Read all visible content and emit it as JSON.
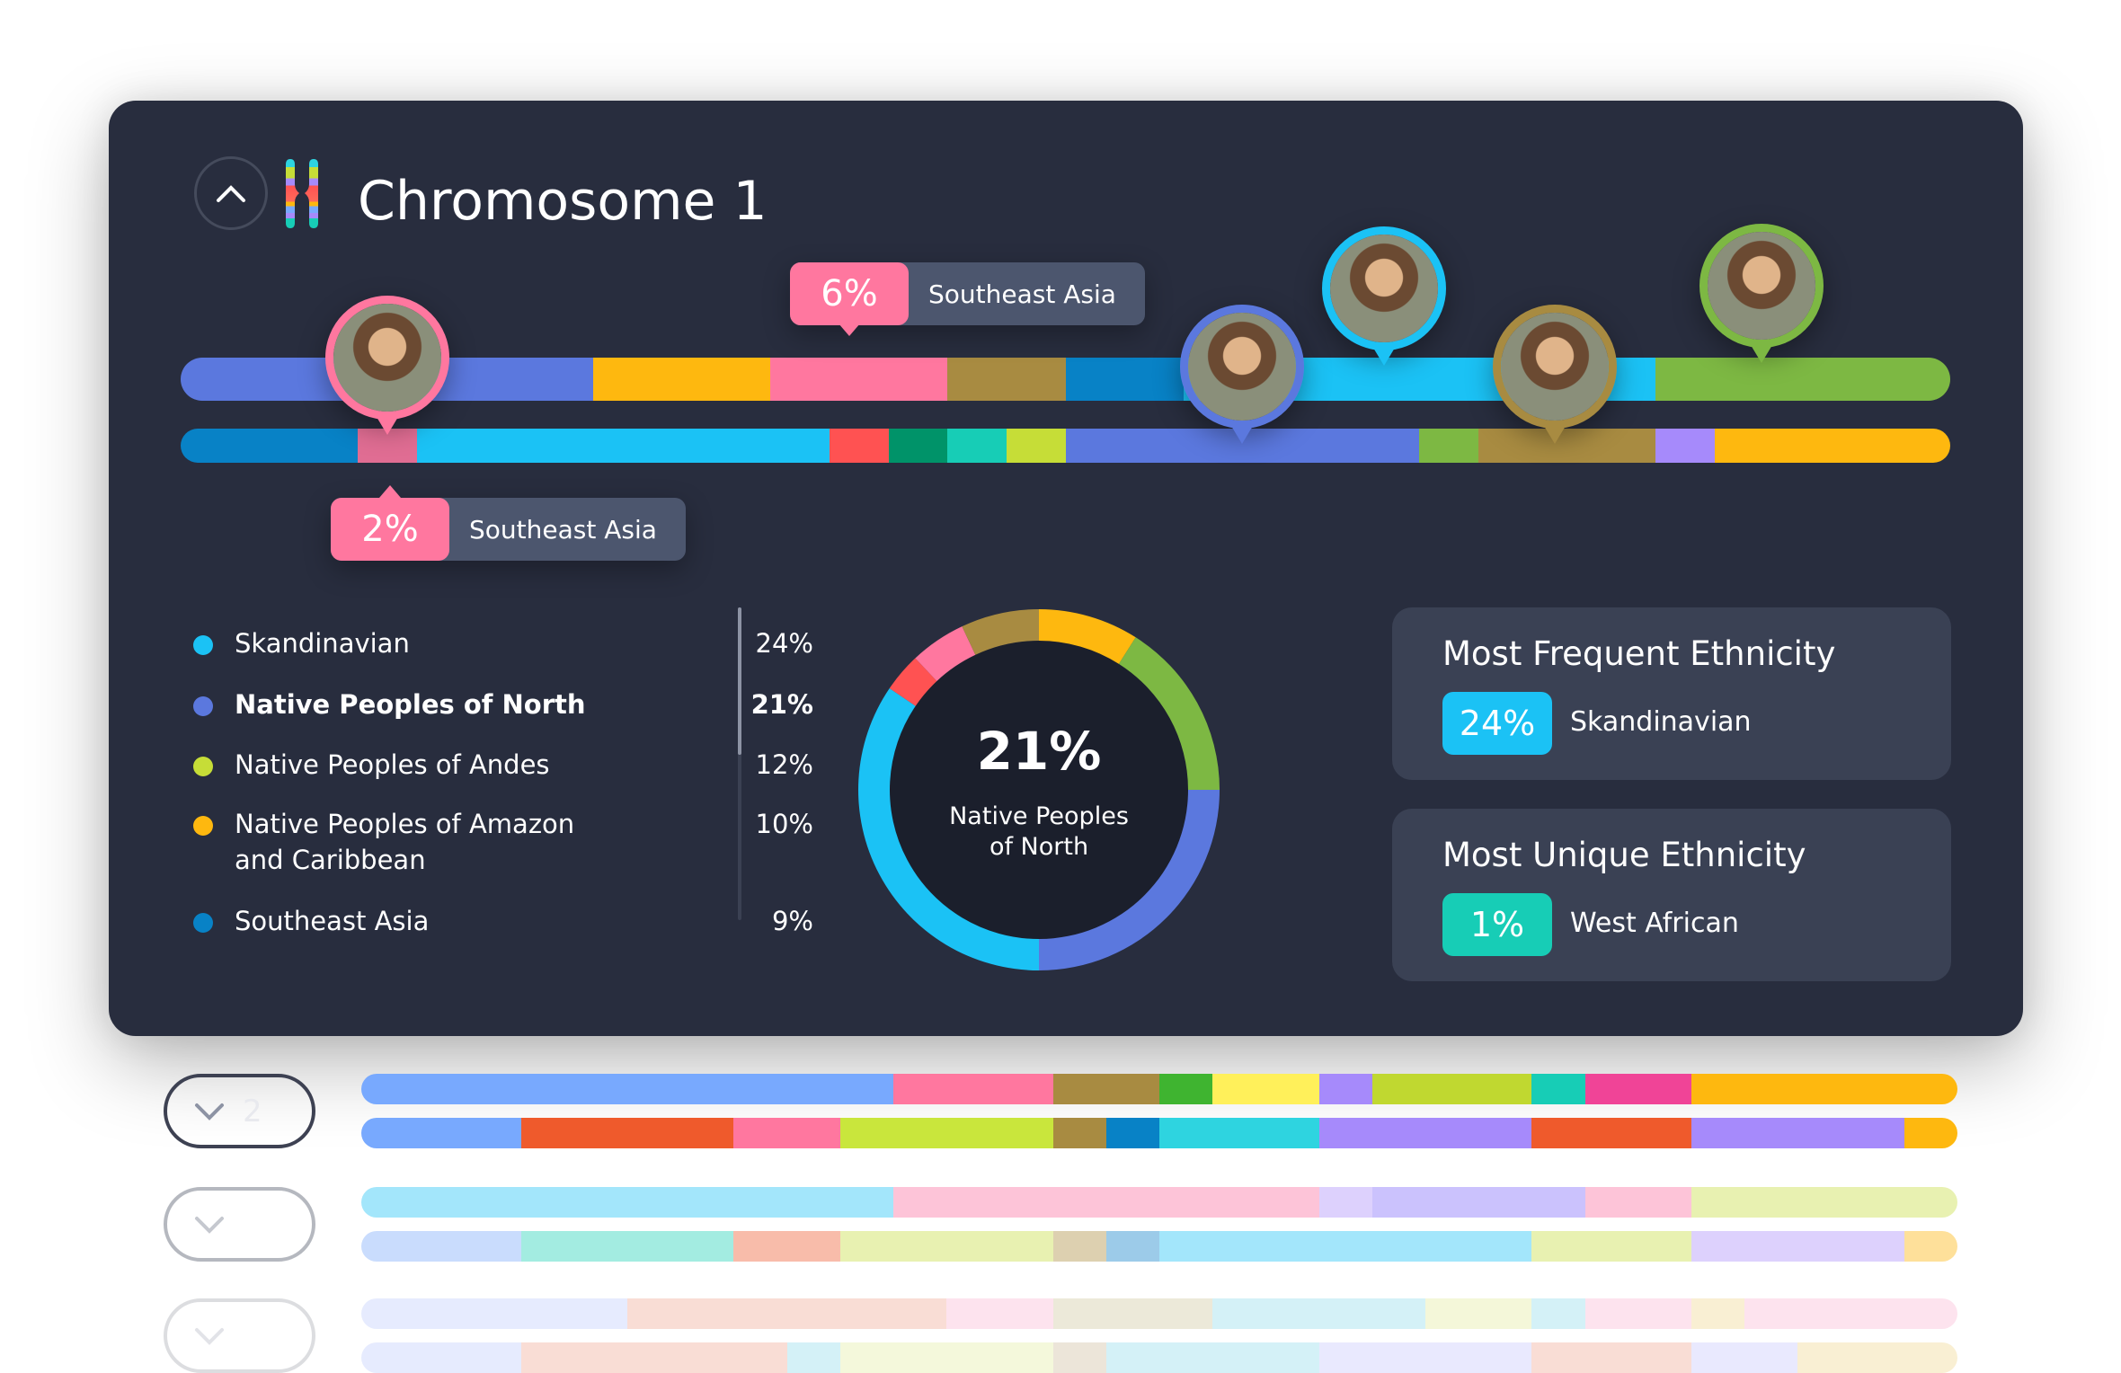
{
  "header": {
    "title": "Chromosome 1",
    "collapse_icon": "chevron-up-icon"
  },
  "colors": {
    "card_bg": "#282d3e",
    "donut_inner": "#1b1f2c",
    "tooltip_accent": "#ff779f"
  },
  "chromosome_bars": {
    "unit_total": 30,
    "top": [
      [
        "#5b78de",
        7
      ],
      [
        "#feb80f",
        3
      ],
      [
        "#ff779f",
        3
      ],
      [
        "#a88b41",
        2
      ],
      [
        "#0882c6",
        2
      ],
      [
        "#1bc2f5",
        8
      ],
      [
        "#7db843",
        5
      ]
    ],
    "bottom": [
      [
        "#0882c6",
        3
      ],
      [
        "#e06d93",
        1
      ],
      [
        "#1bc2f5",
        7
      ],
      [
        "#ff5252",
        1
      ],
      [
        "#009369",
        1
      ],
      [
        "#17cdb6",
        1
      ],
      [
        "#c6dd37",
        1
      ],
      [
        "#5b78de",
        6
      ],
      [
        "#7db843",
        1
      ],
      [
        "#a88b41",
        3
      ],
      [
        "#a68afb",
        1
      ],
      [
        "#feb80f",
        4
      ]
    ]
  },
  "pins": [
    {
      "color": "#ff779f",
      "bar": "top",
      "unit": 3.5,
      "photo": "person-portrait"
    },
    {
      "color": "#5b78de",
      "bar": "top",
      "unit": 18,
      "photo": "person-portrait"
    },
    {
      "color": "#1bc2f5",
      "bar": "top",
      "unit": 20.4,
      "photo": "person-portrait"
    },
    {
      "color": "#a88b41",
      "bar": "top",
      "unit": 23.3,
      "photo": "person-portrait"
    },
    {
      "color": "#7db843",
      "bar": "top",
      "unit": 26.8,
      "photo": "person-portrait"
    }
  ],
  "tooltips": [
    {
      "percent": "6%",
      "label": "Southeast Asia"
    },
    {
      "percent": "2%",
      "label": "Southeast Asia"
    }
  ],
  "legend": [
    {
      "name": "Skandinavian",
      "value": "24%",
      "color": "#1bc2f5",
      "bold": false
    },
    {
      "name": "Native Peoples of North",
      "value": "21%",
      "color": "#5b78de",
      "bold": true
    },
    {
      "name": "Native Peoples of Andes",
      "value": "12%",
      "color": "#c6dd37",
      "bold": false
    },
    {
      "name": "Native Peoples of Amazon and Caribbean",
      "value": "10%",
      "color": "#feb80f",
      "bold": false
    },
    {
      "name": "Southeast Asia",
      "value": "9%",
      "color": "#0882c6",
      "bold": false
    }
  ],
  "donut": {
    "center_value": "21%",
    "center_label": "Native Peoples of North",
    "segments": [
      [
        "#feb80f",
        9
      ],
      [
        "#7db843",
        16
      ],
      [
        "#5b78de",
        25
      ],
      [
        "#1bc2f5",
        34.5
      ],
      [
        "#ff5252",
        3.5
      ],
      [
        "#ff779f",
        5
      ],
      [
        "#a88b41",
        7
      ]
    ]
  },
  "stats": [
    {
      "title": "Most Frequent Ethnicity",
      "percent": "24%",
      "label": "Skandinavian",
      "color": "#1bc2f5"
    },
    {
      "title": "Most Unique Ethnicity",
      "percent": "1%",
      "label": "West African",
      "color": "#17cdb6"
    }
  ],
  "other_chromosomes": [
    {
      "label": "2",
      "expand_icon": "chevron-down-icon",
      "top": [
        [
          "#78a9fe",
          10
        ],
        [
          "#ff779f",
          3
        ],
        [
          "#a88b41",
          2
        ],
        [
          "#3fb430",
          1
        ],
        [
          "#fff05a",
          2
        ],
        [
          "#a68afb",
          1
        ],
        [
          "#c0d830",
          3
        ],
        [
          "#17cdb6",
          1
        ],
        [
          "#f04497",
          2
        ],
        [
          "#feb80f",
          5
        ]
      ],
      "bottom": [
        [
          "#78a9fe",
          3
        ],
        [
          "#ef5a2c",
          4
        ],
        [
          "#ff779f",
          2
        ],
        [
          "#c9e63c",
          4
        ],
        [
          "#a88b41",
          1
        ],
        [
          "#0882c6",
          1
        ],
        [
          "#2ed4e0",
          3
        ],
        [
          "#a68afb",
          4
        ],
        [
          "#ef5a2c",
          3
        ],
        [
          "#a68afb",
          4
        ],
        [
          "#feb80f",
          1
        ]
      ]
    },
    {
      "label": "",
      "expand_icon": "chevron-down-icon",
      "top": [
        [
          "#a3e6fb",
          10
        ],
        [
          "#fdc4d8",
          8
        ],
        [
          "#ddd1fd",
          1
        ],
        [
          "#cbc2fd",
          4
        ],
        [
          "#fdc4d8",
          2
        ],
        [
          "#e8f1b1",
          5
        ]
      ],
      "bottom": [
        [
          "#c9dcfd",
          3
        ],
        [
          "#a3ece1",
          4
        ],
        [
          "#f8bcaa",
          2
        ],
        [
          "#e8f1b1",
          4
        ],
        [
          "#ddd0b0",
          1
        ],
        [
          "#9ccbe9",
          1
        ],
        [
          "#a3e6fb",
          7
        ],
        [
          "#e8f1b1",
          3
        ],
        [
          "#ddd1fd",
          4
        ],
        [
          "#fee09a",
          1
        ]
      ]
    },
    {
      "label": "",
      "expand_icon": "chevron-down-icon",
      "top": [
        [
          "#e6ebfe",
          5
        ],
        [
          "#f9ddd5",
          6
        ],
        [
          "#fde3ee",
          2
        ],
        [
          "#ece9d9",
          3
        ],
        [
          "#d4f1f7",
          4
        ],
        [
          "#f4f7d9",
          2
        ],
        [
          "#d4f1f7",
          1
        ],
        [
          "#fde3ee",
          2
        ],
        [
          "#f9efd3",
          1
        ],
        [
          "#fde3ee",
          4
        ]
      ],
      "bottom": [
        [
          "#e6ebfe",
          3
        ],
        [
          "#f9ddd5",
          5
        ],
        [
          "#d4f1f7",
          1
        ],
        [
          "#f4f8db",
          4
        ],
        [
          "#ece5d9",
          1
        ],
        [
          "#d4f1f7",
          4
        ],
        [
          "#e9e9fe",
          4
        ],
        [
          "#f9ddd5",
          3
        ],
        [
          "#e9e9fe",
          2
        ],
        [
          "#f9efd3",
          3
        ]
      ]
    }
  ]
}
